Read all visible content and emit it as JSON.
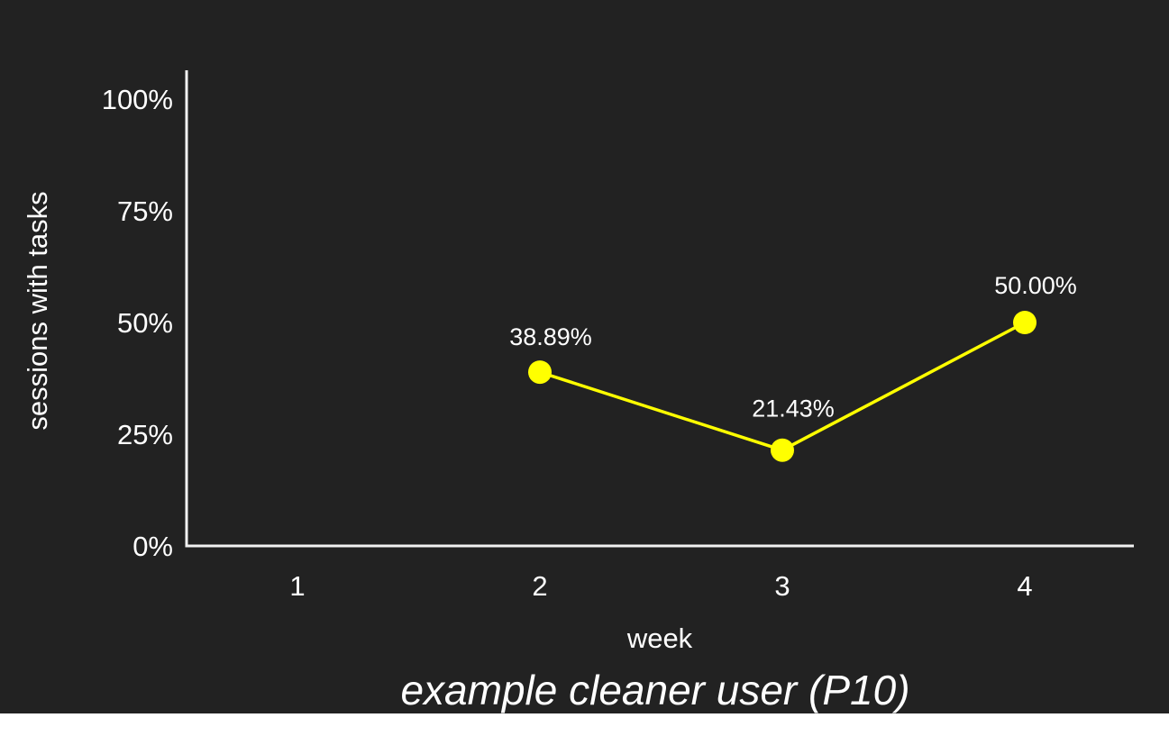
{
  "chart_data": {
    "type": "line",
    "title": "",
    "xlabel": "week",
    "ylabel": "sessions with tasks",
    "caption": "example cleaner user (P10)",
    "categories": [
      "1",
      "2",
      "3",
      "4"
    ],
    "series": [
      {
        "values": [
          null,
          38.89,
          21.43,
          50.0
        ],
        "data_labels": [
          null,
          "38.89%",
          "21.43%",
          "50.00%"
        ]
      }
    ],
    "ylim": [
      0,
      100
    ],
    "y_ticks": [
      0,
      25,
      50,
      75,
      100
    ],
    "y_tick_labels": [
      "0%",
      "25%",
      "50%",
      "75%",
      "100%"
    ],
    "grid": false,
    "legend": "none",
    "colors": {
      "background": "#222222",
      "axis": "#f2f2f2",
      "text": "#ffffff",
      "series": "#ffff00"
    }
  }
}
